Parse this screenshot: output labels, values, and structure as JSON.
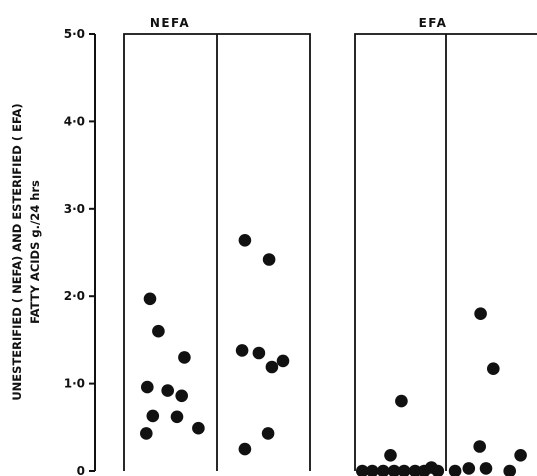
{
  "chart_data": [
    {
      "type": "scatter",
      "title": "NEFA",
      "ylabel_line1": "UNESTERIFIED ( NEFA) AND ESTERIFIED ( EFA)",
      "ylabel_line2": "FATTY ACIDS g./24 hrs",
      "yticks": [
        "0",
        "1·0",
        "2·0",
        "3·0",
        "4·0",
        "5·0"
      ],
      "ylim": [
        0,
        5
      ],
      "legend": "none",
      "grid": false,
      "series": [
        {
          "group": 1,
          "points": [
            {
              "x": 0.28,
              "y": 1.97
            },
            {
              "x": 0.37,
              "y": 1.6
            },
            {
              "x": 0.25,
              "y": 0.96
            },
            {
              "x": 0.47,
              "y": 0.92
            },
            {
              "x": 0.65,
              "y": 1.3
            },
            {
              "x": 0.62,
              "y": 0.86
            },
            {
              "x": 0.31,
              "y": 0.63
            },
            {
              "x": 0.57,
              "y": 0.62
            },
            {
              "x": 0.8,
              "y": 0.49
            },
            {
              "x": 0.24,
              "y": 0.43
            }
          ]
        },
        {
          "group": 2,
          "points": [
            {
              "x": 0.3,
              "y": 2.64
            },
            {
              "x": 0.56,
              "y": 2.42
            },
            {
              "x": 0.27,
              "y": 1.38
            },
            {
              "x": 0.45,
              "y": 1.35
            },
            {
              "x": 0.59,
              "y": 1.19
            },
            {
              "x": 0.71,
              "y": 1.26
            },
            {
              "x": 0.55,
              "y": 0.43
            },
            {
              "x": 0.3,
              "y": 0.25
            }
          ]
        }
      ]
    },
    {
      "type": "scatter",
      "title": "EFA",
      "ylim": [
        0,
        5
      ],
      "legend": "none",
      "grid": false,
      "series": [
        {
          "group": 1,
          "points": [
            {
              "x": 0.51,
              "y": 0.8
            },
            {
              "x": 0.39,
              "y": 0.18
            },
            {
              "x": 0.08,
              "y": 0.0
            },
            {
              "x": 0.19,
              "y": 0.0
            },
            {
              "x": 0.31,
              "y": 0.0
            },
            {
              "x": 0.43,
              "y": 0.0
            },
            {
              "x": 0.54,
              "y": 0.0
            },
            {
              "x": 0.66,
              "y": 0.0
            },
            {
              "x": 0.76,
              "y": 0.0
            },
            {
              "x": 0.84,
              "y": 0.04
            },
            {
              "x": 0.91,
              "y": 0.0
            }
          ]
        },
        {
          "group": 2,
          "points": [
            {
              "x": 0.38,
              "y": 1.8
            },
            {
              "x": 0.52,
              "y": 1.17
            },
            {
              "x": 0.37,
              "y": 0.28
            },
            {
              "x": 0.82,
              "y": 0.18
            },
            {
              "x": 0.1,
              "y": 0.0
            },
            {
              "x": 0.25,
              "y": 0.03
            },
            {
              "x": 0.44,
              "y": 0.03
            },
            {
              "x": 0.7,
              "y": 0.0
            }
          ]
        }
      ]
    }
  ]
}
